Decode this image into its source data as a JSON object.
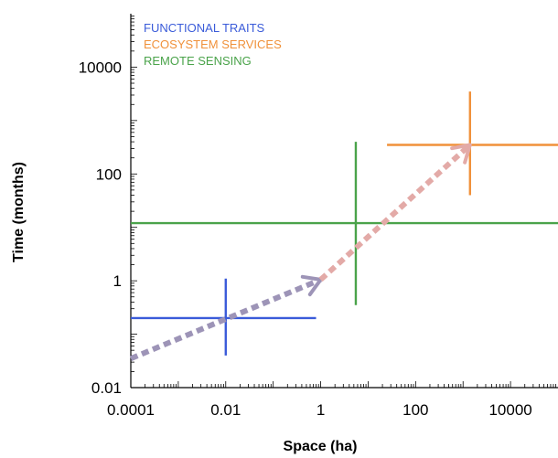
{
  "chart_data": {
    "type": "scatter",
    "title": "",
    "xlabel": "Space (ha)",
    "ylabel": "Time (months)",
    "x_scale": "log",
    "y_scale": "log",
    "xlim": [
      0.0001,
      100000
    ],
    "ylim": [
      0.01,
      100000
    ],
    "x_ticks": [
      {
        "value": 0.0001,
        "label": "0.0001"
      },
      {
        "value": 0.01,
        "label": "0.01"
      },
      {
        "value": 1,
        "label": "1"
      },
      {
        "value": 100,
        "label": "100"
      },
      {
        "value": 10000,
        "label": "10000"
      }
    ],
    "y_ticks": [
      {
        "value": 0.01,
        "label": "0.01"
      },
      {
        "value": 1,
        "label": "1"
      },
      {
        "value": 100,
        "label": "100"
      },
      {
        "value": 10000,
        "label": "10000"
      }
    ],
    "legend_position": "top-left",
    "grid": false,
    "series": [
      {
        "name": "FUNCTIONAL TRAITS",
        "color": "#3a5bd9",
        "x_range": [
          0.0001,
          0.8
        ],
        "y_center": 0.2,
        "x_center": 0.01,
        "y_range": [
          0.04,
          1.1
        ]
      },
      {
        "name": "ECOSYSTEM SERVICES",
        "color": "#f0913a",
        "x_range": [
          25,
          100000
        ],
        "y_center": 350,
        "x_center": 1400,
        "y_range": [
          40,
          3500
        ]
      },
      {
        "name": "REMOTE SENSING",
        "color": "#4aa34a",
        "x_range": [
          0.0001,
          100000
        ],
        "y_center": 12,
        "x_center": 5.5,
        "y_range": [
          0.35,
          400
        ]
      }
    ],
    "arrows": [
      {
        "color": "#9d94b7",
        "from": [
          0.0001,
          0.035
        ],
        "to": [
          1,
          1.05
        ]
      },
      {
        "color": "#e3aaa7",
        "from": [
          1,
          1.05
        ],
        "to": [
          1400,
          350
        ]
      }
    ]
  }
}
